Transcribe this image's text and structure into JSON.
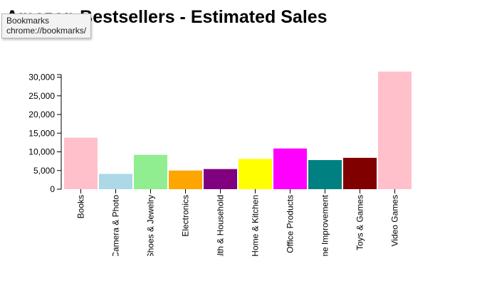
{
  "page": {
    "title": "Amazon Bestsellers - Estimated Sales"
  },
  "tooltip": {
    "line1": "Bookmarks",
    "line2": "chrome://bookmarks/"
  },
  "chart_data": {
    "type": "bar",
    "title": "Amazon Bestsellers - Estimated Sales",
    "xlabel": "",
    "ylabel": "",
    "ylim": [
      0,
      32000
    ],
    "yticks": [
      0,
      5000,
      10000,
      15000,
      20000,
      25000,
      30000
    ],
    "grid": false,
    "legend": "none",
    "categories": [
      "Books",
      "Camera & Photo",
      "Clothing, Shoes & Jewelry",
      "Electronics",
      "Health & Household",
      "Home & Kitchen",
      "Office Products",
      "Home Improvement",
      "Toys & Games",
      "Video Games"
    ],
    "values": [
      13800,
      4100,
      9200,
      5000,
      5400,
      8100,
      10900,
      7800,
      8400,
      31500
    ],
    "colors": [
      "#ffc0cb",
      "#add8e6",
      "#90ee90",
      "#ffa500",
      "#800080",
      "#ffff00",
      "#ff00ff",
      "#008080",
      "#800000",
      "#ffc0cb"
    ]
  }
}
